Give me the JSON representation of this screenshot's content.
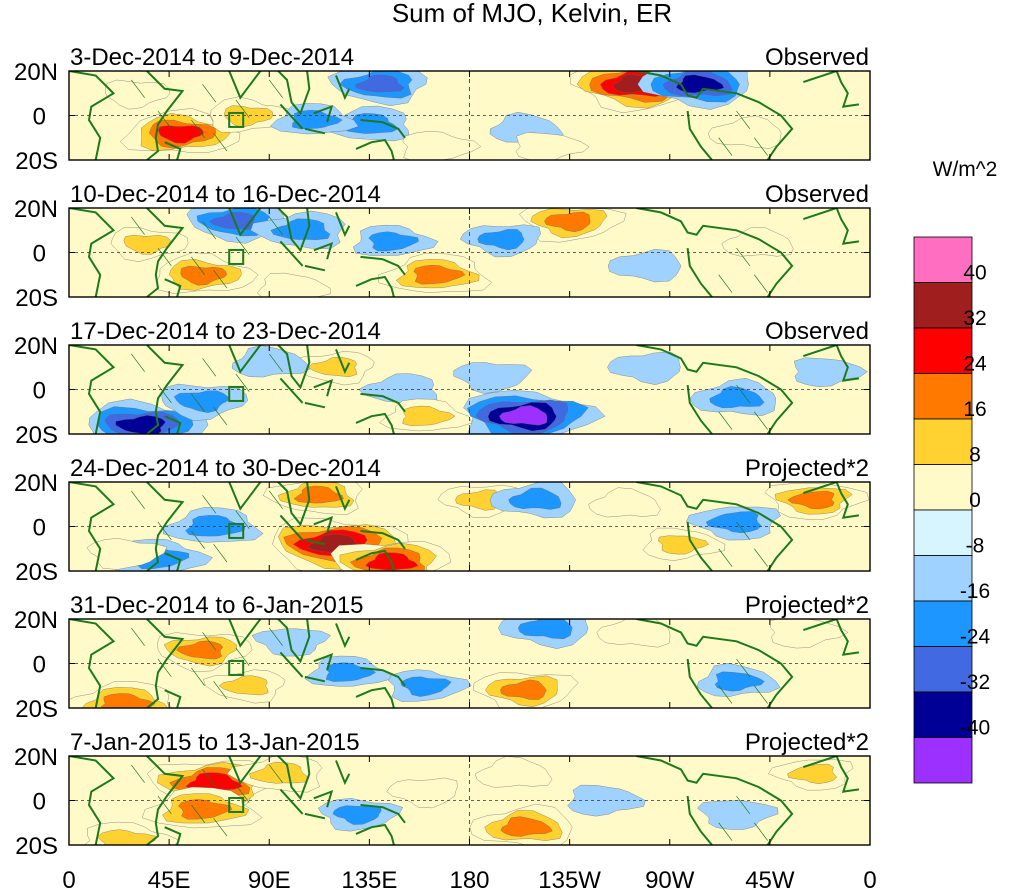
{
  "chart_data": {
    "type": "heatmap",
    "title": "Sum of MJO, Kelvin, ER",
    "colorbar": {
      "unit_label": "W/m^2",
      "levels": [
        "40",
        "32",
        "24",
        "16",
        "8",
        "0",
        "-8",
        "-16",
        "-24",
        "-32",
        "-40"
      ],
      "colors_top_to_bottom": [
        "#ff6ec0",
        "#a01e1e",
        "#ff0000",
        "#ff7800",
        "#ffd232",
        "#fffac8",
        "#d7f5ff",
        "#a0d2ff",
        "#1e96ff",
        "#4169e1",
        "#000096",
        "#9b30ff"
      ]
    },
    "x_ticks": [
      "0",
      "45E",
      "90E",
      "135E",
      "180",
      "135W",
      "90W",
      "45W",
      "0"
    ],
    "x_range": [
      0,
      360
    ],
    "y_ticks": [
      "20N",
      "0",
      "20S"
    ],
    "y_range": [
      -20,
      20
    ],
    "panels": [
      {
        "date_range": "3-Dec-2014 to 9-Dec-2014",
        "status": "Observed",
        "features": [
          {
            "lon": 50,
            "lat": -8,
            "value": 28
          },
          {
            "lon": 80,
            "lat": 0,
            "value": 14
          },
          {
            "lon": 30,
            "lat": 10,
            "value": 6
          },
          {
            "lon": 140,
            "lat": 14,
            "value": -20
          },
          {
            "lon": 135,
            "lat": -4,
            "value": -16
          },
          {
            "lon": 110,
            "lat": -2,
            "value": -12
          },
          {
            "lon": 165,
            "lat": -14,
            "value": 10
          },
          {
            "lon": 255,
            "lat": 14,
            "value": 36
          },
          {
            "lon": 283,
            "lat": 14,
            "value": -28
          },
          {
            "lon": 305,
            "lat": -8,
            "value": 10
          },
          {
            "lon": 205,
            "lat": -6,
            "value": -8
          },
          {
            "lon": 215,
            "lat": -14,
            "value": 8
          }
        ]
      },
      {
        "date_range": "10-Dec-2014 to 16-Dec-2014",
        "status": "Observed",
        "features": [
          {
            "lon": 60,
            "lat": -10,
            "value": 22
          },
          {
            "lon": 35,
            "lat": 4,
            "value": 12
          },
          {
            "lon": 75,
            "lat": 14,
            "value": -20
          },
          {
            "lon": 105,
            "lat": 10,
            "value": -18
          },
          {
            "lon": 165,
            "lat": -10,
            "value": 24
          },
          {
            "lon": 145,
            "lat": 5,
            "value": -12
          },
          {
            "lon": 225,
            "lat": 14,
            "value": 22
          },
          {
            "lon": 195,
            "lat": 6,
            "value": -12
          },
          {
            "lon": 260,
            "lat": -6,
            "value": -10
          },
          {
            "lon": 310,
            "lat": 4,
            "value": 8
          },
          {
            "lon": 100,
            "lat": -16,
            "value": 8
          }
        ]
      },
      {
        "date_range": "17-Dec-2014 to 23-Dec-2014",
        "status": "Observed",
        "features": [
          {
            "lon": 33,
            "lat": -16,
            "value": -32
          },
          {
            "lon": 60,
            "lat": -5,
            "value": -16
          },
          {
            "lon": 120,
            "lat": 10,
            "value": 12
          },
          {
            "lon": 150,
            "lat": 0,
            "value": -10
          },
          {
            "lon": 160,
            "lat": -12,
            "value": 14
          },
          {
            "lon": 205,
            "lat": -12,
            "value": -38
          },
          {
            "lon": 190,
            "lat": 6,
            "value": -10
          },
          {
            "lon": 260,
            "lat": 10,
            "value": -10
          },
          {
            "lon": 300,
            "lat": -4,
            "value": -16
          },
          {
            "lon": 90,
            "lat": 12,
            "value": -10
          },
          {
            "lon": 340,
            "lat": 8,
            "value": -8
          }
        ]
      },
      {
        "date_range": "24-Dec-2014 to 30-Dec-2014",
        "status": "Projected*2",
        "features": [
          {
            "lon": 120,
            "lat": -8,
            "value": 40
          },
          {
            "lon": 145,
            "lat": -16,
            "value": 30
          },
          {
            "lon": 112,
            "lat": 14,
            "value": 20
          },
          {
            "lon": 65,
            "lat": 0,
            "value": -18
          },
          {
            "lon": 40,
            "lat": -14,
            "value": -18
          },
          {
            "lon": 25,
            "lat": -12,
            "value": 10
          },
          {
            "lon": 185,
            "lat": 12,
            "value": 12
          },
          {
            "lon": 210,
            "lat": 12,
            "value": -16
          },
          {
            "lon": 250,
            "lat": 10,
            "value": 8
          },
          {
            "lon": 275,
            "lat": -8,
            "value": 12
          },
          {
            "lon": 335,
            "lat": 12,
            "value": 20
          },
          {
            "lon": 300,
            "lat": 2,
            "value": -16
          }
        ]
      },
      {
        "date_range": "31-Dec-2014 to 6-Jan-2015",
        "status": "Projected*2",
        "features": [
          {
            "lon": 60,
            "lat": 6,
            "value": 20
          },
          {
            "lon": 80,
            "lat": -10,
            "value": 12
          },
          {
            "lon": 25,
            "lat": -18,
            "value": 26
          },
          {
            "lon": 125,
            "lat": -4,
            "value": -12
          },
          {
            "lon": 160,
            "lat": -10,
            "value": -12
          },
          {
            "lon": 205,
            "lat": -12,
            "value": 22
          },
          {
            "lon": 215,
            "lat": 16,
            "value": -18
          },
          {
            "lon": 255,
            "lat": 14,
            "value": 10
          },
          {
            "lon": 300,
            "lat": -8,
            "value": -12
          },
          {
            "lon": 330,
            "lat": 14,
            "value": 10
          },
          {
            "lon": 100,
            "lat": 10,
            "value": -8
          }
        ]
      },
      {
        "date_range": "7-Jan-2015 to 13-Jan-2015",
        "status": "Projected*2",
        "features": [
          {
            "lon": 65,
            "lat": 8,
            "value": 34
          },
          {
            "lon": 95,
            "lat": 12,
            "value": 18
          },
          {
            "lon": 60,
            "lat": -4,
            "value": 26
          },
          {
            "lon": 25,
            "lat": -18,
            "value": 18
          },
          {
            "lon": 130,
            "lat": -6,
            "value": -12
          },
          {
            "lon": 160,
            "lat": 4,
            "value": 8
          },
          {
            "lon": 205,
            "lat": -12,
            "value": 24
          },
          {
            "lon": 200,
            "lat": 12,
            "value": 10
          },
          {
            "lon": 240,
            "lat": 0,
            "value": -10
          },
          {
            "lon": 300,
            "lat": -6,
            "value": -10
          },
          {
            "lon": 335,
            "lat": 12,
            "value": 12
          }
        ]
      }
    ]
  }
}
